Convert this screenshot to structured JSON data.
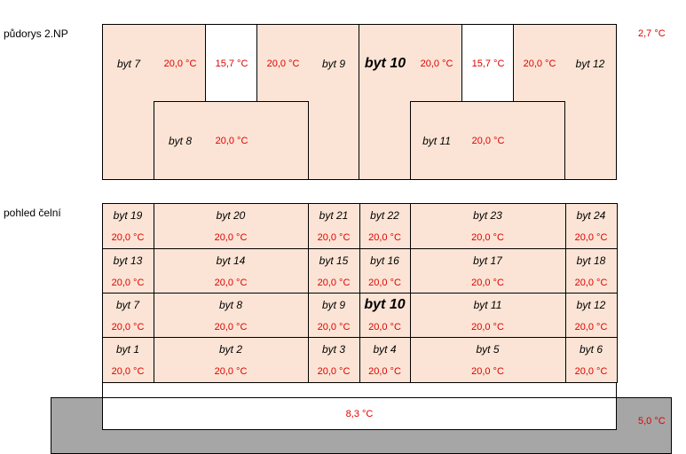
{
  "labels": {
    "floor_plan": "půdorys 2.NP",
    "front_view": "pohled čelní",
    "exterior_temp": "2,7 °C",
    "ground_temp": "5,0 °C",
    "basement_temp": "8,3 °C"
  },
  "floor_plan": {
    "apartments": [
      {
        "name": "byt 7",
        "temp": "20,0 °C"
      },
      {
        "name": "byt 8",
        "temp": "20,0 °C"
      },
      {
        "name": "byt 9",
        "temp": "20,0 °C"
      },
      {
        "name": "byt 10",
        "temp": "20,0 °C"
      },
      {
        "name": "byt 11",
        "temp": "20,0 °C"
      },
      {
        "name": "byt 12",
        "temp": "20,0 °C"
      }
    ],
    "stair_left_temp": "15,7 °C",
    "stair_right_temp": "15,7 °C"
  },
  "front_view": {
    "rows": [
      [
        {
          "name": "byt 19",
          "temp": "20,0 °C"
        },
        {
          "name": "byt 20",
          "temp": "20,0 °C"
        },
        {
          "name": "byt 21",
          "temp": "20,0 °C"
        },
        {
          "name": "byt 22",
          "temp": "20,0 °C"
        },
        {
          "name": "byt 23",
          "temp": "20,0 °C"
        },
        {
          "name": "byt 24",
          "temp": "20,0 °C"
        }
      ],
      [
        {
          "name": "byt 13",
          "temp": "20,0 °C"
        },
        {
          "name": "byt 14",
          "temp": "20,0 °C"
        },
        {
          "name": "byt 15",
          "temp": "20,0 °C"
        },
        {
          "name": "byt 16",
          "temp": "20,0 °C"
        },
        {
          "name": "byt 17",
          "temp": "20,0 °C"
        },
        {
          "name": "byt 18",
          "temp": "20,0 °C"
        }
      ],
      [
        {
          "name": "byt 7",
          "temp": "20,0 °C"
        },
        {
          "name": "byt 8",
          "temp": "20,0 °C"
        },
        {
          "name": "byt 9",
          "temp": "20,0 °C"
        },
        {
          "name": "byt 10",
          "temp": "20,0 °C"
        },
        {
          "name": "byt 11",
          "temp": "20,0 °C"
        },
        {
          "name": "byt 12",
          "temp": "20,0 °C"
        }
      ],
      [
        {
          "name": "byt 1",
          "temp": "20,0 °C"
        },
        {
          "name": "byt 2",
          "temp": "20,0 °C"
        },
        {
          "name": "byt 3",
          "temp": "20,0 °C"
        },
        {
          "name": "byt 4",
          "temp": "20,0 °C"
        },
        {
          "name": "byt 5",
          "temp": "20,0 °C"
        },
        {
          "name": "byt 6",
          "temp": "20,0 °C"
        }
      ]
    ]
  }
}
